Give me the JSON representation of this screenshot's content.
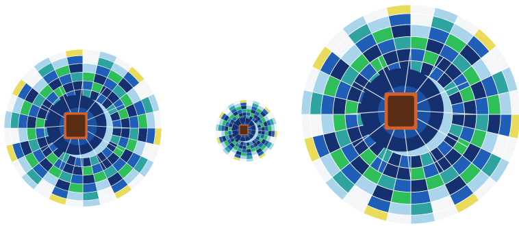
{
  "scene": {
    "subject": "hot-air-balloons-top-view",
    "background_color": "#ffffff",
    "balloon_count": 3
  },
  "palette": {
    "navy": "#14306e",
    "royal_blue": "#1f5fb8",
    "teal": "#2fa3a0",
    "green": "#2fbf5a",
    "light_blue": "#a9d4ec",
    "yellow": "#e9dc5a",
    "white": "#f4f6f8",
    "basket": "#5a2e14",
    "basket_rim": "#d4612b",
    "rope": "#ffffff"
  },
  "balloons": [
    {
      "id": "balloon-left",
      "label": "",
      "basket_shape": "square"
    },
    {
      "id": "balloon-small",
      "label": "",
      "basket_shape": "square"
    },
    {
      "id": "balloon-right",
      "label": "",
      "basket_shape": "square"
    }
  ]
}
